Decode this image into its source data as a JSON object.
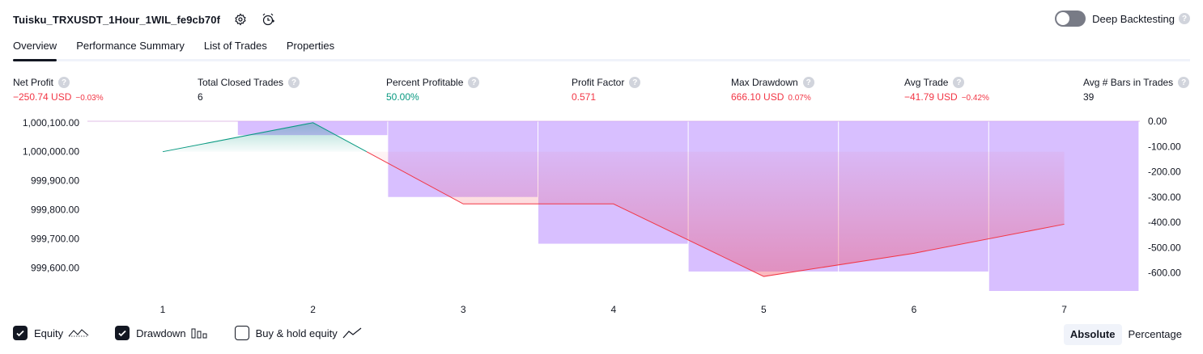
{
  "header": {
    "title": "Tuisku_TRXUSDT_1Hour_1WIL_fe9cb70f",
    "deep_backtesting_label": "Deep Backtesting",
    "help_glyph": "?"
  },
  "tabs": [
    {
      "label": "Overview",
      "active": true
    },
    {
      "label": "Performance Summary",
      "active": false
    },
    {
      "label": "List of Trades",
      "active": false
    },
    {
      "label": "Properties",
      "active": false
    }
  ],
  "metrics": {
    "net_profit": {
      "label": "Net Profit",
      "value": "−250.74 USD",
      "pct": "−0.03%"
    },
    "total_closed_trades": {
      "label": "Total Closed Trades",
      "value": "6"
    },
    "percent_profitable": {
      "label": "Percent Profitable",
      "value": "50.00%"
    },
    "profit_factor": {
      "label": "Profit Factor",
      "value": "0.571"
    },
    "max_drawdown": {
      "label": "Max Drawdown",
      "value": "666.10 USD",
      "pct": "0.07%"
    },
    "avg_trade": {
      "label": "Avg Trade",
      "value": "−41.79 USD",
      "pct": "−0.42%"
    },
    "avg_bars": {
      "label": "Avg # Bars in Trades",
      "value": "39"
    }
  },
  "chart_data": {
    "type": "line",
    "x": [
      1,
      2,
      3,
      4,
      5,
      6,
      7
    ],
    "left_axis_ticks": [
      "1,000,100.00",
      "1,000,000.00",
      "999,900.00",
      "999,800.00",
      "999,700.00",
      "999,600.00"
    ],
    "left_axis_values": [
      1000100,
      1000000,
      999900,
      999800,
      999700,
      999600
    ],
    "right_axis_ticks": [
      "0.00",
      "-100.00",
      "-200.00",
      "-300.00",
      "-400.00",
      "-500.00",
      "-600.00"
    ],
    "right_axis_values": [
      0,
      -100,
      -200,
      -300,
      -400,
      -500,
      -600
    ],
    "left_ylim": [
      999520,
      1000105
    ],
    "right_ylim": [
      -672,
      0
    ],
    "series": [
      {
        "name": "Equity",
        "axis": "left",
        "values": [
          1000000,
          1000100,
          999820,
          999820,
          999570,
          999650,
          999750
        ]
      },
      {
        "name": "Drawdown",
        "axis": "right",
        "type": "bar",
        "values": [
          0,
          -55,
          -300,
          -485,
          -595,
          -595,
          -672
        ]
      }
    ],
    "colors": {
      "profit": "#089981",
      "loss": "#f23645",
      "drawdown": "#c9a6ff"
    }
  },
  "legend": {
    "equity_label": "Equity",
    "drawdown_label": "Drawdown",
    "buyhold_label": "Buy & hold equity"
  },
  "modes": {
    "absolute": "Absolute",
    "percentage": "Percentage"
  }
}
